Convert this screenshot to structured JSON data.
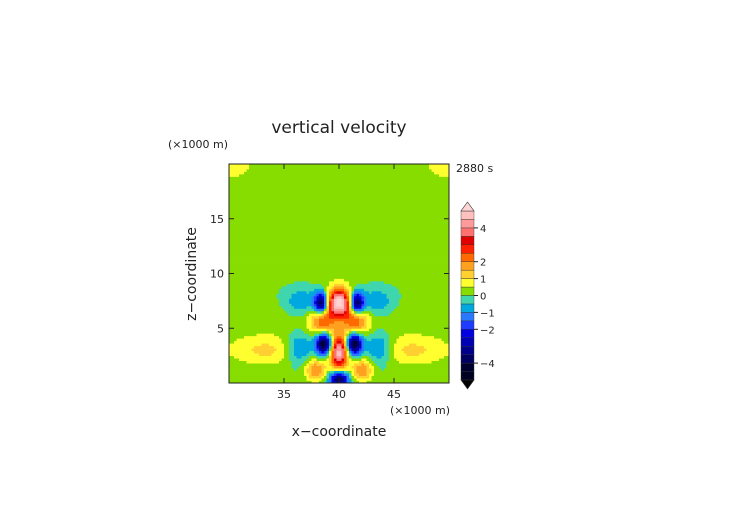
{
  "chart_data": {
    "type": "heatmap",
    "title": "vertical velocity",
    "xlabel": "x−coordinate",
    "ylabel": "z−coordinate",
    "x_unit": "(×1000 m)",
    "y_unit": "(×1000 m)",
    "time_label": "2880 s",
    "xlim": [
      30,
      50
    ],
    "ylim": [
      0,
      20
    ],
    "x_ticks": [
      35,
      40,
      45
    ],
    "x_tick_labels": [
      "35",
      "40",
      "45"
    ],
    "y_ticks": [
      5,
      10,
      15
    ],
    "y_tick_labels": [
      "5",
      "10",
      "15"
    ],
    "colorbar": {
      "levels": [
        -5,
        -4.5,
        -4,
        -3.5,
        -3,
        -2.5,
        -2,
        -1.5,
        -1,
        -0.5,
        0,
        0.5,
        1,
        1.5,
        2,
        2.5,
        3,
        3.5,
        4,
        4.5,
        5
      ],
      "colors": [
        "#000022",
        "#00002e",
        "#000060",
        "#00008c",
        "#0000b4",
        "#0000e0",
        "#1e3cff",
        "#2a78ff",
        "#00a8e0",
        "#3fd6ae",
        "#88dd00",
        "#ffff30",
        "#ffd030",
        "#ffa020",
        "#ff6a00",
        "#ff2000",
        "#e00000",
        "#ff7070",
        "#ff9a9a",
        "#ffc0c0",
        "#ffd4d4"
      ],
      "tick_values": [
        4,
        2,
        1,
        0,
        -1,
        -2,
        -4
      ],
      "tick_labels": [
        "4",
        "2",
        "1",
        "0",
        "−1",
        "−2",
        "−4"
      ]
    },
    "field_features": [
      {
        "x": 40,
        "z": 7.4,
        "amplitude": 5.0,
        "sx": 0.8,
        "sz": 0.9
      },
      {
        "x": 40,
        "z": 2.8,
        "amplitude": 4.6,
        "sx": 0.55,
        "sz": 1.1
      },
      {
        "x": 38.4,
        "z": 7.3,
        "amplitude": -4.5,
        "sx": 0.45,
        "sz": 0.7
      },
      {
        "x": 41.6,
        "z": 7.3,
        "amplitude": -4.5,
        "sx": 0.45,
        "sz": 0.7
      },
      {
        "x": 38.6,
        "z": 3.6,
        "amplitude": -4.8,
        "sx": 0.5,
        "sz": 0.7
      },
      {
        "x": 41.4,
        "z": 3.6,
        "amplitude": -4.8,
        "sx": 0.5,
        "sz": 0.7
      },
      {
        "x": 40,
        "z": 0.4,
        "amplitude": -4.2,
        "sx": 0.6,
        "sz": 0.5
      },
      {
        "x": 38.5,
        "z": 5.7,
        "amplitude": 2.2,
        "sx": 0.8,
        "sz": 0.9
      },
      {
        "x": 41.5,
        "z": 5.7,
        "amplitude": 2.2,
        "sx": 0.8,
        "sz": 0.9
      },
      {
        "x": 37.9,
        "z": 1.2,
        "amplitude": 2.0,
        "sx": 0.7,
        "sz": 0.7
      },
      {
        "x": 42.1,
        "z": 1.2,
        "amplitude": 2.0,
        "sx": 0.7,
        "sz": 0.7
      },
      {
        "x": 36.4,
        "z": 3.2,
        "amplitude": -1.6,
        "sx": 0.9,
        "sz": 1.0
      },
      {
        "x": 43.6,
        "z": 3.2,
        "amplitude": -1.6,
        "sx": 0.9,
        "sz": 1.0
      },
      {
        "x": 36.6,
        "z": 7.4,
        "amplitude": -1.1,
        "sx": 1.1,
        "sz": 0.9
      },
      {
        "x": 43.4,
        "z": 7.4,
        "amplitude": -1.1,
        "sx": 1.1,
        "sz": 0.9
      },
      {
        "x": 33.5,
        "z": 3.0,
        "amplitude": 1.1,
        "sx": 2.8,
        "sz": 1.0
      },
      {
        "x": 46.5,
        "z": 3.0,
        "amplitude": 1.1,
        "sx": 2.8,
        "sz": 1.0
      },
      {
        "x": 40,
        "z": 12.0,
        "amplitude": 0.5,
        "sx": 12.0,
        "sz": 1.6
      },
      {
        "x": 30,
        "z": 19.8,
        "amplitude": 0.7,
        "sx": 2.2,
        "sz": 1.2
      },
      {
        "x": 50,
        "z": 19.8,
        "amplitude": 0.7,
        "sx": 2.2,
        "sz": 1.2
      },
      {
        "x": 40,
        "z": 6.0,
        "amplitude": 0.35,
        "sx": 9.0,
        "sz": 1.4
      }
    ]
  }
}
